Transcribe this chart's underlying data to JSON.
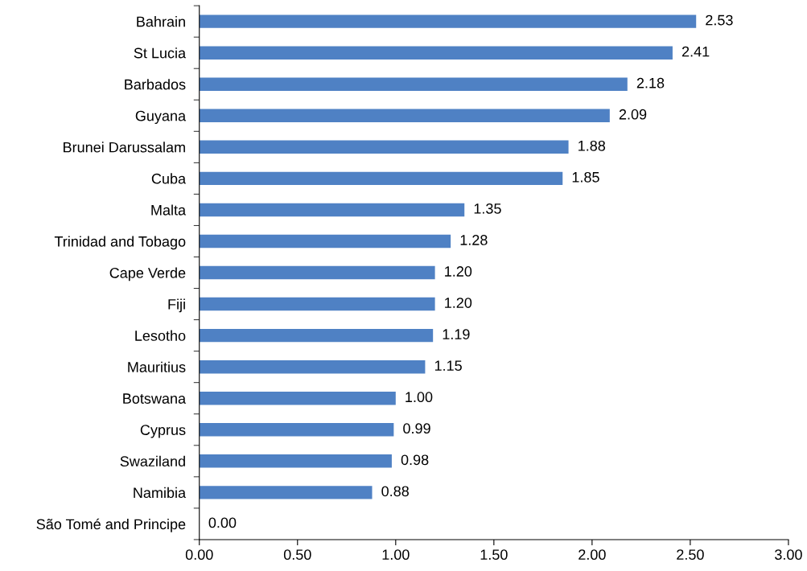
{
  "chart_data": {
    "type": "bar",
    "orientation": "horizontal",
    "categories": [
      "Bahrain",
      "St Lucia",
      "Barbados",
      "Guyana",
      "Brunei Darussalam",
      "Cuba",
      "Malta",
      "Trinidad and Tobago",
      "Cape Verde",
      "Fiji",
      "Lesotho",
      "Mauritius",
      "Botswana",
      "Cyprus",
      "Swaziland",
      "Namibia",
      "São Tomé and Principe"
    ],
    "values": [
      2.53,
      2.41,
      2.18,
      2.09,
      1.88,
      1.85,
      1.35,
      1.28,
      1.2,
      1.2,
      1.19,
      1.15,
      1.0,
      0.99,
      0.98,
      0.88,
      0.0
    ],
    "value_labels": [
      "2.53",
      "2.41",
      "2.18",
      "2.09",
      "1.88",
      "1.85",
      "1.35",
      "1.28",
      "1.20",
      "1.20",
      "1.19",
      "1.15",
      "1.00",
      "0.99",
      "0.98",
      "0.88",
      "0.00"
    ],
    "color": "#4f81c4",
    "xlim": [
      0,
      3
    ],
    "xticks": [
      {
        "value": 0,
        "label": "0.00"
      },
      {
        "value": 0.5,
        "label": "0.50"
      },
      {
        "value": 1,
        "label": "1.00"
      },
      {
        "value": 1.5,
        "label": "1.50"
      },
      {
        "value": 2,
        "label": "2.00"
      },
      {
        "value": 2.5,
        "label": "2.50"
      },
      {
        "value": 3,
        "label": "3.00"
      }
    ],
    "grid": false
  }
}
